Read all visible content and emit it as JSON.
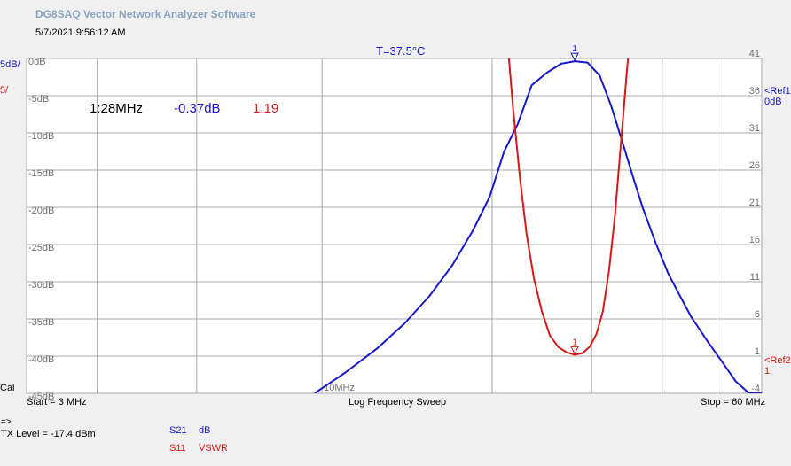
{
  "header": {
    "app_title": "DG8SAQ Vector Network Analyzer Software",
    "datetime": "5/7/2021   9:56:12 AM",
    "temperature": "T=37.5°C"
  },
  "left_panel": {
    "blue_scale": "5dB/",
    "red_scale": "5/",
    "cal_label": "Cal"
  },
  "marker_readout": {
    "name": "1:28MHz",
    "s21_value": "-0.37dB",
    "s11_value": "1.19"
  },
  "footer": {
    "start": "Start = 3 MHz",
    "sweep": "Log Frequency Sweep",
    "stop": "Stop = 60 MHz",
    "prompt": "=>",
    "tx_level": "TX Level = -17.4 dBm"
  },
  "legend": {
    "s21_name": "S21",
    "s21_format": "dB",
    "s11_name": "S11",
    "s11_format": "VSWR"
  },
  "refs": {
    "ref1_label": "<Ref1",
    "ref1_value": "0dB",
    "ref2_label": "<Ref2",
    "ref2_value": "1"
  },
  "colors": {
    "s21": "#1818c8",
    "s11": "#d81818",
    "grid": "#a8a8a8",
    "plot_bg": "#ffffff",
    "axis_text": "#707070"
  },
  "chart_data": {
    "type": "line",
    "x_scale": "log",
    "xlim": [
      3,
      60
    ],
    "x_unit": "MHz",
    "x_tick_label": "10MHz",
    "x_gridlines": [
      4,
      6,
      10,
      20,
      30,
      40,
      50
    ],
    "left_axis": {
      "ylim": [
        -45,
        0
      ],
      "tick_labels": [
        "0dB",
        "-5dB",
        "-10dB",
        "-15dB",
        "-20dB",
        "-25dB",
        "-30dB",
        "-35dB",
        "-40dB",
        "-45dB"
      ]
    },
    "right_axis": {
      "ylim": [
        -4,
        41
      ],
      "tick_labels": [
        "41",
        "36",
        "31",
        "26",
        "21",
        "16",
        "11",
        "6",
        "1",
        "-4"
      ]
    },
    "series": [
      {
        "name": "S21",
        "axis": "left",
        "color": "#1818c8",
        "x": [
          9.7,
          11,
          12.5,
          14,
          15.5,
          17,
          18.5,
          19.8,
          21,
          22.2,
          23.5,
          25,
          26.5,
          28,
          29.5,
          31,
          32.5,
          34,
          35.5,
          37,
          39,
          41,
          43,
          45,
          48,
          51,
          54,
          57,
          60
        ],
        "y": [
          -45,
          -42.2,
          -39,
          -35.6,
          -31.9,
          -27.8,
          -23.1,
          -18.6,
          -12.5,
          -8.8,
          -3.6,
          -1.9,
          -0.7,
          -0.37,
          -0.55,
          -2.3,
          -6.4,
          -11.2,
          -15.9,
          -20.2,
          -24.9,
          -28.9,
          -31.9,
          -34.7,
          -37.9,
          -40.7,
          -43.4,
          -45.0,
          -45.0
        ]
      },
      {
        "name": "S11",
        "axis": "right",
        "color": "#d81818",
        "x": [
          21.2,
          21.8,
          22.4,
          23.0,
          23.7,
          24.5,
          25.3,
          26.2,
          27.1,
          28.0,
          28.9,
          29.8,
          30.6,
          31.4,
          32.2,
          33.0,
          33.5,
          34.1,
          34.6,
          35.2
        ],
        "y": [
          45,
          34,
          25,
          17.5,
          11.5,
          7,
          3.8,
          2.2,
          1.5,
          1.19,
          1.4,
          2.3,
          4,
          7,
          12.5,
          20,
          26,
          33,
          39,
          45
        ]
      }
    ],
    "markers": [
      {
        "label": "1",
        "x": 28,
        "series": "S21",
        "y": -0.37
      },
      {
        "label": "1",
        "x": 28,
        "series": "S11",
        "y": 1.19
      }
    ]
  }
}
